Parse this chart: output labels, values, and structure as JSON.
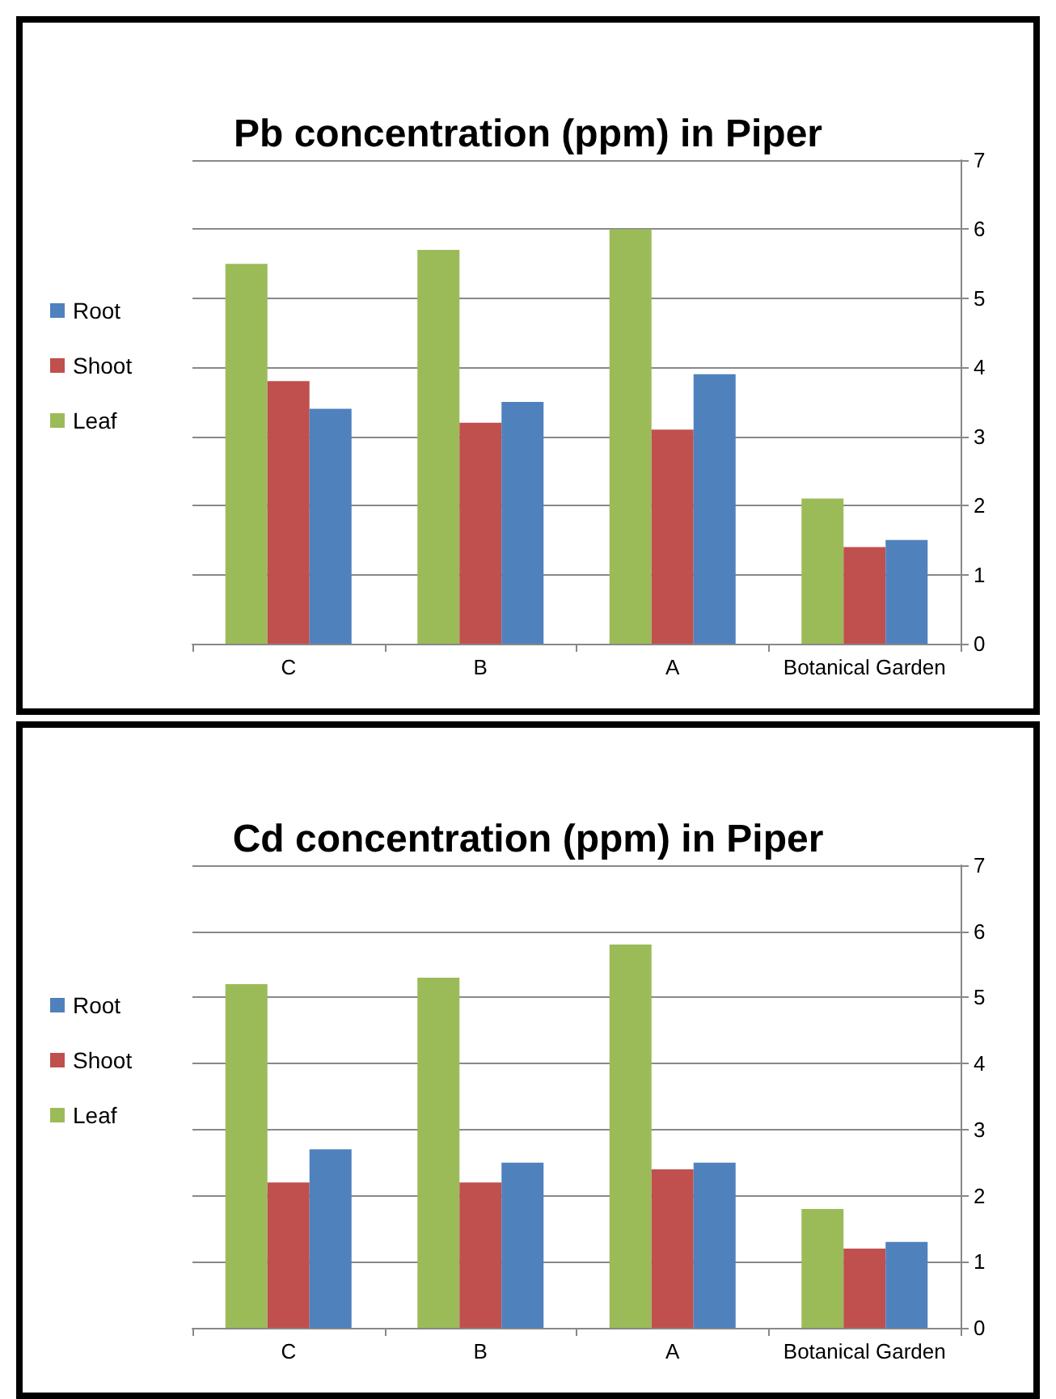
{
  "chart_data": [
    {
      "type": "bar",
      "title": "Pb concentration (ppm) in Piper",
      "categories": [
        "C",
        "B",
        "A",
        "Botanical Garden"
      ],
      "series": [
        {
          "name": "Leaf",
          "color": "#9bbb59",
          "values": [
            5.5,
            5.7,
            6.0,
            2.1
          ]
        },
        {
          "name": "Shoot",
          "color": "#c0504d",
          "values": [
            3.8,
            3.2,
            3.1,
            1.4
          ]
        },
        {
          "name": "Root",
          "color": "#4f81bd",
          "values": [
            3.4,
            3.5,
            3.9,
            1.5
          ]
        }
      ],
      "ylim": [
        0,
        7
      ],
      "yticks": [
        0,
        1,
        2,
        3,
        4,
        5,
        6,
        7
      ],
      "grid": "y",
      "legend": "left"
    },
    {
      "type": "bar",
      "title": "Cd concentration (ppm) in Piper",
      "categories": [
        "C",
        "B",
        "A",
        "Botanical Garden"
      ],
      "series": [
        {
          "name": "Leaf",
          "color": "#9bbb59",
          "values": [
            5.2,
            5.3,
            5.8,
            1.8
          ]
        },
        {
          "name": "Shoot",
          "color": "#c0504d",
          "values": [
            2.2,
            2.2,
            2.4,
            1.2
          ]
        },
        {
          "name": "Root",
          "color": "#4f81bd",
          "values": [
            2.7,
            2.5,
            2.5,
            1.3
          ]
        }
      ],
      "ylim": [
        0,
        7
      ],
      "yticks": [
        0,
        1,
        2,
        3,
        4,
        5,
        6,
        7
      ],
      "grid": "y",
      "legend": "left"
    }
  ]
}
